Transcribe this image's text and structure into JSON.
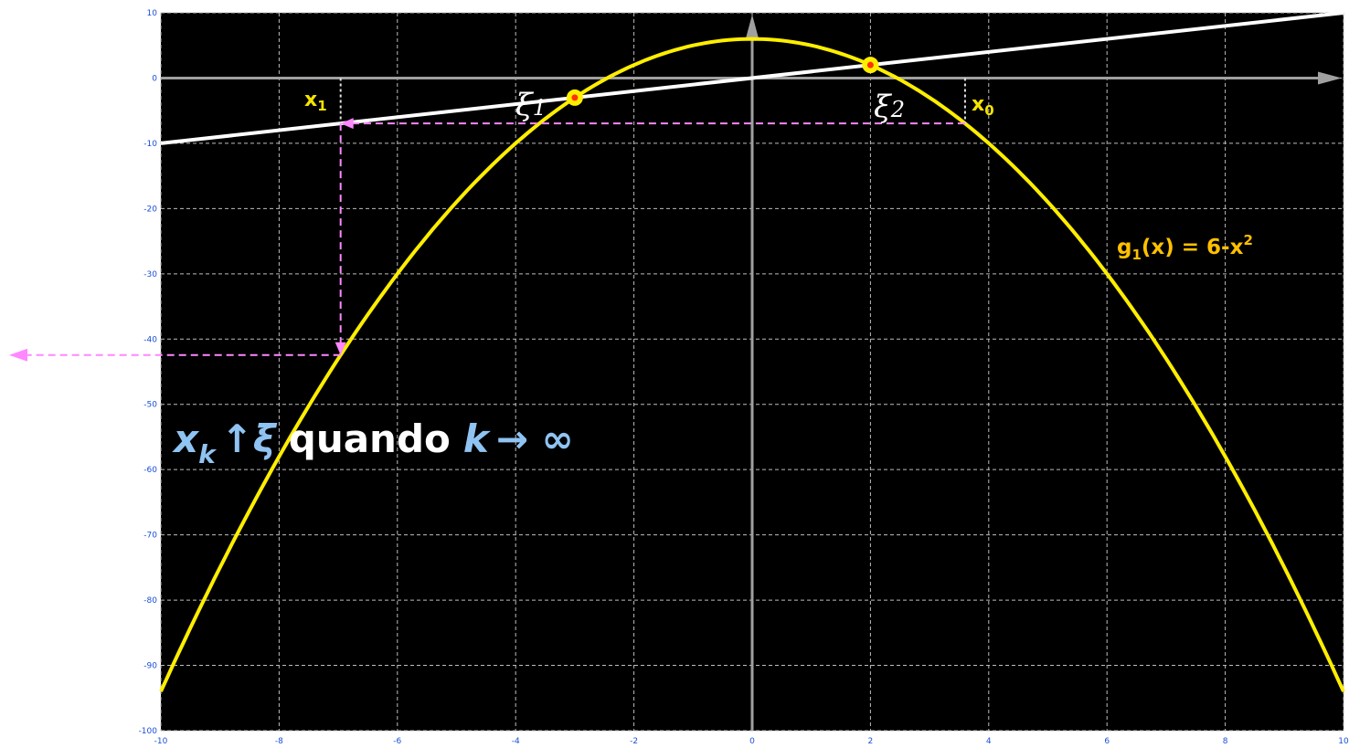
{
  "chart_data": {
    "type": "line",
    "xlim": [
      -10,
      10
    ],
    "ylim": [
      -100,
      10
    ],
    "x_ticks": [
      -10,
      -8,
      -6,
      -4,
      -2,
      0,
      2,
      4,
      6,
      8,
      10
    ],
    "y_ticks": [
      10,
      0,
      -10,
      -20,
      -30,
      -40,
      -50,
      -60,
      -70,
      -80,
      -90,
      -100
    ],
    "grid": true,
    "background": "#000000",
    "series": [
      {
        "name": "g1(x) = 6-x²",
        "color": "#ffee00",
        "function": "6-x^2",
        "x": [
          -10,
          -9,
          -8,
          -7,
          -6,
          -5,
          -4,
          -3,
          -2,
          -1,
          0,
          1,
          2,
          3,
          4,
          5,
          6,
          7,
          8,
          9,
          10
        ],
        "y": [
          -94,
          -75,
          -58,
          -43,
          -30,
          -19,
          -10,
          -3,
          2,
          5,
          6,
          5,
          2,
          -3,
          -10,
          -19,
          -30,
          -43,
          -58,
          -75,
          -94
        ]
      },
      {
        "color": "#ffffff",
        "function": "x",
        "x": [
          -10,
          10
        ],
        "y": [
          -10,
          10
        ]
      }
    ],
    "fixed_points": [
      {
        "label": "ξ1",
        "x": -3,
        "y": -3
      },
      {
        "label": "ξ2",
        "x": 2,
        "y": 2
      }
    ],
    "iteration": {
      "color": "#ff88ff",
      "x0": 3.6,
      "x1": -6.96,
      "x0_label": "x0",
      "x1_label": "x1"
    },
    "annotations": {
      "legend_g1_main": "g",
      "legend_g1_sub": "1",
      "legend_g1_rest": "(x) = 6-x",
      "legend_g1_sup": "2",
      "x0_main": "x",
      "x0_sub": "0",
      "x1_main": "x",
      "x1_sub": "1",
      "xi1_main": "ξ",
      "xi1_sub": "1",
      "xi2_main": "ξ",
      "xi2_sub": "2",
      "conv_x": "x",
      "conv_k": "k",
      "conv_arrow_up": "↑",
      "conv_xi": "ξ",
      "conv_quando": "quando",
      "conv_k2": "k",
      "conv_arrow_inf": "→ ∞"
    }
  }
}
